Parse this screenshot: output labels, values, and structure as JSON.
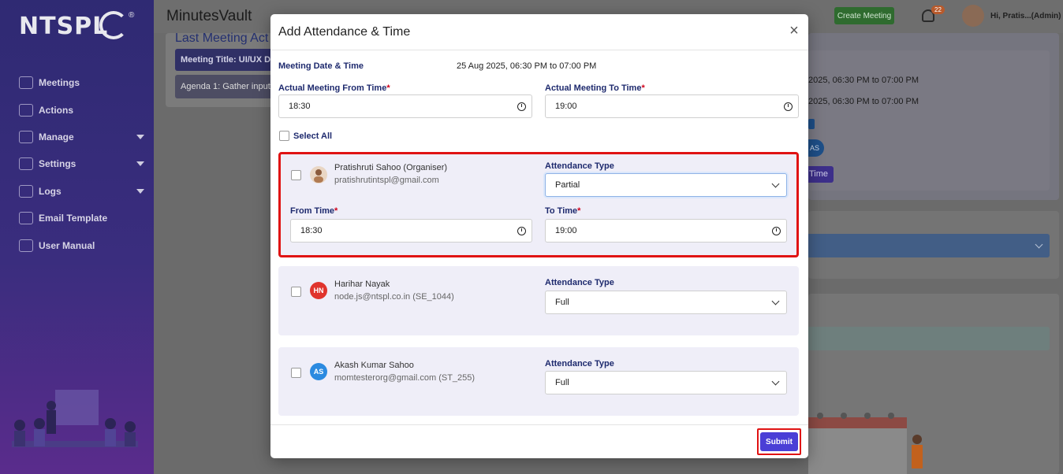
{
  "brand": {
    "logo_text": "NTSPL",
    "reg_mark": "®"
  },
  "sidebar": {
    "items": [
      {
        "label": "Meetings",
        "icon": "meetings-icon",
        "caret": false
      },
      {
        "label": "Actions",
        "icon": "actions-icon",
        "caret": false
      },
      {
        "label": "Manage",
        "icon": "manage-icon",
        "caret": true
      },
      {
        "label": "Settings",
        "icon": "gear-icon",
        "caret": true
      },
      {
        "label": "Logs",
        "icon": "history-icon",
        "caret": true
      },
      {
        "label": "Email Template",
        "icon": "email-icon",
        "caret": false
      },
      {
        "label": "User Manual",
        "icon": "book-icon",
        "caret": false
      }
    ]
  },
  "header": {
    "app_title": "MinutesVault",
    "create_meeting_label": "Create Meeting",
    "notification_count": "22",
    "greeting": "Hi, Pratis...(Admin)"
  },
  "background": {
    "section_title": "Last Meeting Act",
    "meeting_title_bar": "Meeting Title: UI/UX De",
    "agenda_bar": "Agenda 1: Gather input",
    "time_line_1": "2025, 06:30 PM to 07:00 PM",
    "time_line_2": "2025, 06:30 PM to 07:00 PM",
    "avatar_initials": "AS",
    "time_button": "Time"
  },
  "modal": {
    "title": "Add Attendance & Time",
    "close_label": "×",
    "meeting_datetime_label": "Meeting Date & Time",
    "meeting_datetime_value": "25 Aug 2025, 06:30 PM to 07:00 PM",
    "actual_from_label": "Actual Meeting From Time",
    "actual_from_value": "18:30",
    "actual_to_label": "Actual Meeting To Time",
    "actual_to_value": "19:00",
    "required_mark": "*",
    "select_all_label": "Select All",
    "attendance_type_label": "Attendance Type",
    "from_time_label": "From Time",
    "to_time_label": "To Time",
    "participants": [
      {
        "name": "Pratishruti Sahoo (Organiser)",
        "email": "pratishrutintspl@gmail.com",
        "initials": "",
        "avatar_color": "#e9d6c4",
        "attendance": "Partial",
        "from": "18:30",
        "to": "19:00"
      },
      {
        "name": "Harihar Nayak",
        "email": "node.js@ntspl.co.in (SE_1044)",
        "initials": "HN",
        "avatar_color": "#e0342d",
        "attendance": "Full"
      },
      {
        "name": "Akash Kumar Sahoo",
        "email": "momtesterorg@gmail.com (ST_255)",
        "initials": "AS",
        "avatar_color": "#2b8ae0",
        "attendance": "Full"
      }
    ],
    "submit_label": "Submit"
  }
}
